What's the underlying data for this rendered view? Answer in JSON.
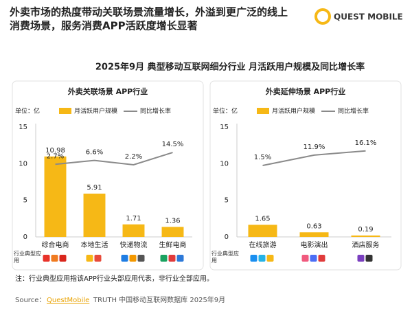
{
  "header": {
    "title_lines": [
      "外卖市场的热度带动关联场景流量增长，外溢到更广泛的线上",
      "消费场景，服务消费APP活跃度增长显著"
    ],
    "logo": "QUEST MOBILE"
  },
  "subtitle": "2025年9月 典型移动互联网细分行业 月活跃用户规模及同比增长率",
  "chart_data": [
    {
      "type": "bar",
      "title": "外卖关联场景 APP行业",
      "unit": "单位：亿",
      "icon_row_label": "行业典型应用",
      "categories": [
        "综合电商",
        "本地生活",
        "快递物流",
        "生鲜电商"
      ],
      "series": [
        {
          "name": "月活跃用户规模",
          "color": "#f6b816",
          "values": [
            10.98,
            5.91,
            1.71,
            1.36
          ]
        },
        {
          "name": "同比增长率",
          "color": "#8a8a8a",
          "type": "line",
          "axis": "y2",
          "values": [
            2.7,
            6.6,
            2.2,
            14.5
          ],
          "value_labels": [
            "2.7%",
            "6.6%",
            "2.2%",
            "14.5%"
          ]
        }
      ],
      "ylim": [
        0,
        15
      ],
      "yticks": [
        0,
        5,
        10,
        15
      ],
      "y2lim": [
        -70,
        40
      ]
    },
    {
      "type": "bar",
      "title": "外卖延伸场景 APP行业",
      "unit": "单位：亿",
      "icon_row_label": "行业典型应用",
      "categories": [
        "在线旅游",
        "电影演出",
        "酒店服务"
      ],
      "series": [
        {
          "name": "月活跃用户规模",
          "color": "#f6b816",
          "values": [
            1.65,
            0.63,
            0.19
          ]
        },
        {
          "name": "同比增长率",
          "color": "#8a8a8a",
          "type": "line",
          "axis": "y2",
          "values": [
            1.5,
            11.9,
            16.1
          ],
          "value_labels": [
            "1.5%",
            "11.9%",
            "16.1%"
          ]
        }
      ],
      "ylim": [
        0,
        15
      ],
      "yticks": [
        0,
        5,
        10,
        15
      ],
      "y2lim": [
        -70,
        40
      ]
    }
  ],
  "footnote": "注：行业典型应用指该APP行业头部应用代表，非行业全部应用。",
  "source": {
    "label": "Source：",
    "link": "QuestMobile",
    "text": "TRUTH 中国移动互联网数据库 2025年9月"
  }
}
